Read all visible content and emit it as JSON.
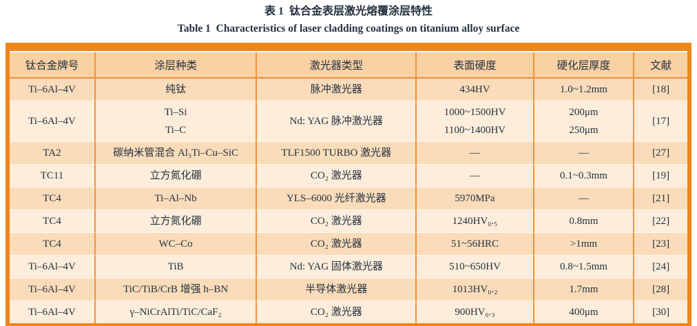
{
  "page": {
    "title_zh": "表 1  钛合金表层激光熔覆涂层特性",
    "title_en": "Table 1  Characteristics of laser cladding coatings on titanium alloy surface"
  },
  "colors": {
    "frame_orange": "#F0861B",
    "separator_orange": "#F0923C",
    "header_bg": "#F8D1A4",
    "row_odd_bg": "#FADCBA",
    "row_even_bg": "#FDEDDA",
    "text": "#243140"
  },
  "table": {
    "headers": [
      "钛合金牌号",
      "涂层种类",
      "激光器类型",
      "表面硬度",
      "硬化层厚度",
      "文献"
    ],
    "rows": [
      [
        "Ti–6Al–4V",
        "纯钛",
        "脉冲激光器",
        "434HV",
        "1.0~1.2mm",
        "[18]"
      ],
      [
        "Ti–6Al–4V",
        "Ti–Si\nTi–C",
        "Nd: YAG 脉冲激光器",
        "1000~1500HV\n1100~1400HV",
        "200μm\n250μm",
        "[17]"
      ],
      [
        "TA2",
        "碳纳米管混合 Al₃Ti–Cu–SiC",
        "TLF1500 TURBO 激光器",
        "—",
        "—",
        "[27]"
      ],
      [
        "TC11",
        "立方氮化硼",
        "CO₂ 激光器",
        "—",
        "0.1~0.3mm",
        "[19]"
      ],
      [
        "TC4",
        "Ti–Al–Nb",
        "YLS–6000 光纤激光器",
        "5970MPa",
        "—",
        "[21]"
      ],
      [
        "TC4",
        "立方氮化硼",
        "CO₂ 激光器",
        "1240HV₀.₅",
        "0.8mm",
        "[22]"
      ],
      [
        "TC4",
        "WC–Co",
        "CO₂ 激光器",
        "51~56HRC",
        ">1mm",
        "[23]"
      ],
      [
        "Ti–6Al–4V",
        "TiB",
        "Nd: YAG 固体激光器",
        "510~650HV",
        "0.8~1.5mm",
        "[24]"
      ],
      [
        "Ti–6Al–4V",
        "TiC/TiB/CrB 增强 h–BN",
        "半导体激光器",
        "1013HV₀.₂",
        "1.7mm",
        "[28]"
      ],
      [
        "Ti–6Al–4V",
        "γ–NiCrAlTi/TiC/CaF₂",
        "CO₂ 激光器",
        "900HV₀.₃",
        "400μm",
        "[30]"
      ]
    ]
  }
}
